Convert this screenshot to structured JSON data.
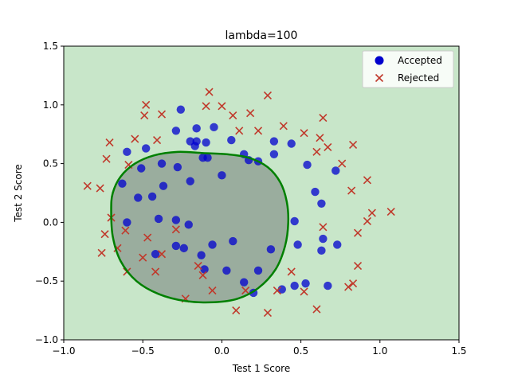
{
  "chart_data": {
    "type": "scatter",
    "title": "lambda=100",
    "xlabel": "Test 1 Score",
    "ylabel": "Test 2 Score",
    "xlim": [
      -1.0,
      1.5
    ],
    "ylim": [
      -1.0,
      1.5
    ],
    "xticks": [
      "−1.0",
      "−0.5",
      "0.0",
      "0.5",
      "1.0",
      "1.5"
    ],
    "yticks": [
      "−1.0",
      "−0.5",
      "0.0",
      "0.5",
      "1.0",
      "1.5"
    ],
    "xtick_values": [
      -1.0,
      -0.5,
      0.0,
      0.5,
      1.0,
      1.5
    ],
    "ytick_values": [
      -1.0,
      -0.5,
      0.0,
      0.5,
      1.0,
      1.5
    ],
    "legend_position": "top-right",
    "background_color": "#c8e6c9",
    "region_color": "#9aad9e",
    "boundary_color": "#008000",
    "accepted_color": "#0000cd",
    "rejected_color": "#c0392b",
    "series": [
      {
        "name": "Accepted",
        "marker": "circle",
        "points": [
          [
            -0.26,
            0.96
          ],
          [
            -0.29,
            0.78
          ],
          [
            -0.16,
            0.8
          ],
          [
            -0.05,
            0.81
          ],
          [
            0.06,
            0.7
          ],
          [
            -0.2,
            0.69
          ],
          [
            -0.16,
            0.69
          ],
          [
            -0.1,
            0.68
          ],
          [
            -0.17,
            0.65
          ],
          [
            -0.6,
            0.6
          ],
          [
            -0.48,
            0.63
          ],
          [
            0.14,
            0.58
          ],
          [
            0.17,
            0.53
          ],
          [
            0.23,
            0.52
          ],
          [
            0.33,
            0.69
          ],
          [
            0.33,
            0.58
          ],
          [
            0.44,
            0.67
          ],
          [
            -0.12,
            0.55
          ],
          [
            -0.09,
            0.55
          ],
          [
            -0.38,
            0.5
          ],
          [
            -0.28,
            0.47
          ],
          [
            -0.51,
            0.46
          ],
          [
            -0.2,
            0.35
          ],
          [
            0.0,
            0.4
          ],
          [
            0.54,
            0.49
          ],
          [
            0.72,
            0.44
          ],
          [
            -0.63,
            0.33
          ],
          [
            -0.37,
            0.31
          ],
          [
            -0.44,
            0.22
          ],
          [
            -0.53,
            0.21
          ],
          [
            0.59,
            0.26
          ],
          [
            0.63,
            0.16
          ],
          [
            -0.6,
            0.0
          ],
          [
            -0.4,
            0.03
          ],
          [
            -0.29,
            0.02
          ],
          [
            -0.21,
            -0.02
          ],
          [
            0.46,
            0.01
          ],
          [
            0.64,
            -0.14
          ],
          [
            0.63,
            -0.24
          ],
          [
            0.73,
            -0.19
          ],
          [
            0.48,
            -0.19
          ],
          [
            -0.42,
            -0.27
          ],
          [
            -0.24,
            -0.22
          ],
          [
            -0.29,
            -0.2
          ],
          [
            -0.13,
            -0.28
          ],
          [
            -0.06,
            -0.19
          ],
          [
            0.07,
            -0.16
          ],
          [
            -0.11,
            -0.4
          ],
          [
            0.03,
            -0.41
          ],
          [
            0.23,
            -0.41
          ],
          [
            0.31,
            -0.23
          ],
          [
            0.14,
            -0.51
          ],
          [
            0.2,
            -0.6
          ],
          [
            0.38,
            -0.57
          ],
          [
            0.46,
            -0.54
          ],
          [
            0.53,
            -0.52
          ],
          [
            0.67,
            -0.54
          ]
        ]
      },
      {
        "name": "Rejected",
        "marker": "x",
        "points": [
          [
            -0.48,
            1.0
          ],
          [
            -0.49,
            0.91
          ],
          [
            -0.38,
            0.92
          ],
          [
            -0.08,
            1.11
          ],
          [
            -0.1,
            0.99
          ],
          [
            0.0,
            0.99
          ],
          [
            0.07,
            0.91
          ],
          [
            0.11,
            0.78
          ],
          [
            0.18,
            0.93
          ],
          [
            0.23,
            0.78
          ],
          [
            0.29,
            1.08
          ],
          [
            0.39,
            0.82
          ],
          [
            0.52,
            0.76
          ],
          [
            0.62,
            0.72
          ],
          [
            0.64,
            0.89
          ],
          [
            0.67,
            0.64
          ],
          [
            0.6,
            0.6
          ],
          [
            0.76,
            0.5
          ],
          [
            0.83,
            0.66
          ],
          [
            -0.71,
            0.68
          ],
          [
            -0.55,
            0.71
          ],
          [
            -0.41,
            0.7
          ],
          [
            -0.73,
            0.54
          ],
          [
            -0.59,
            0.49
          ],
          [
            -0.85,
            0.31
          ],
          [
            -0.77,
            0.29
          ],
          [
            0.82,
            0.27
          ],
          [
            0.92,
            0.36
          ],
          [
            0.95,
            0.08
          ],
          [
            1.07,
            0.09
          ],
          [
            0.92,
            0.01
          ],
          [
            -0.7,
            0.04
          ],
          [
            -0.74,
            -0.1
          ],
          [
            -0.61,
            -0.07
          ],
          [
            -0.47,
            -0.13
          ],
          [
            -0.29,
            -0.06
          ],
          [
            0.64,
            -0.04
          ],
          [
            0.86,
            -0.09
          ],
          [
            -0.76,
            -0.26
          ],
          [
            -0.66,
            -0.22
          ],
          [
            -0.5,
            -0.3
          ],
          [
            -0.38,
            -0.27
          ],
          [
            -0.42,
            -0.42
          ],
          [
            -0.6,
            -0.42
          ],
          [
            -0.15,
            -0.37
          ],
          [
            -0.12,
            -0.45
          ],
          [
            -0.06,
            -0.58
          ],
          [
            -0.23,
            -0.65
          ],
          [
            0.15,
            -0.58
          ],
          [
            0.44,
            -0.42
          ],
          [
            0.86,
            -0.37
          ],
          [
            0.83,
            -0.52
          ],
          [
            0.8,
            -0.55
          ],
          [
            0.35,
            -0.58
          ],
          [
            0.52,
            -0.59
          ],
          [
            0.6,
            -0.74
          ],
          [
            0.09,
            -0.75
          ],
          [
            0.29,
            -0.77
          ]
        ]
      }
    ],
    "decision_boundary": [
      [
        -0.7,
        0.1
      ],
      [
        -0.69,
        0.25
      ],
      [
        -0.64,
        0.39
      ],
      [
        -0.55,
        0.5
      ],
      [
        -0.43,
        0.57
      ],
      [
        -0.28,
        0.6
      ],
      [
        -0.12,
        0.59
      ],
      [
        0.03,
        0.58
      ],
      [
        0.17,
        0.55
      ],
      [
        0.29,
        0.47
      ],
      [
        0.37,
        0.34
      ],
      [
        0.41,
        0.18
      ],
      [
        0.42,
        0.0
      ],
      [
        0.4,
        -0.2
      ],
      [
        0.34,
        -0.4
      ],
      [
        0.23,
        -0.56
      ],
      [
        0.1,
        -0.65
      ],
      [
        -0.05,
        -0.68
      ],
      [
        -0.23,
        -0.67
      ],
      [
        -0.4,
        -0.61
      ],
      [
        -0.54,
        -0.5
      ],
      [
        -0.64,
        -0.33
      ],
      [
        -0.69,
        -0.12
      ]
    ]
  }
}
